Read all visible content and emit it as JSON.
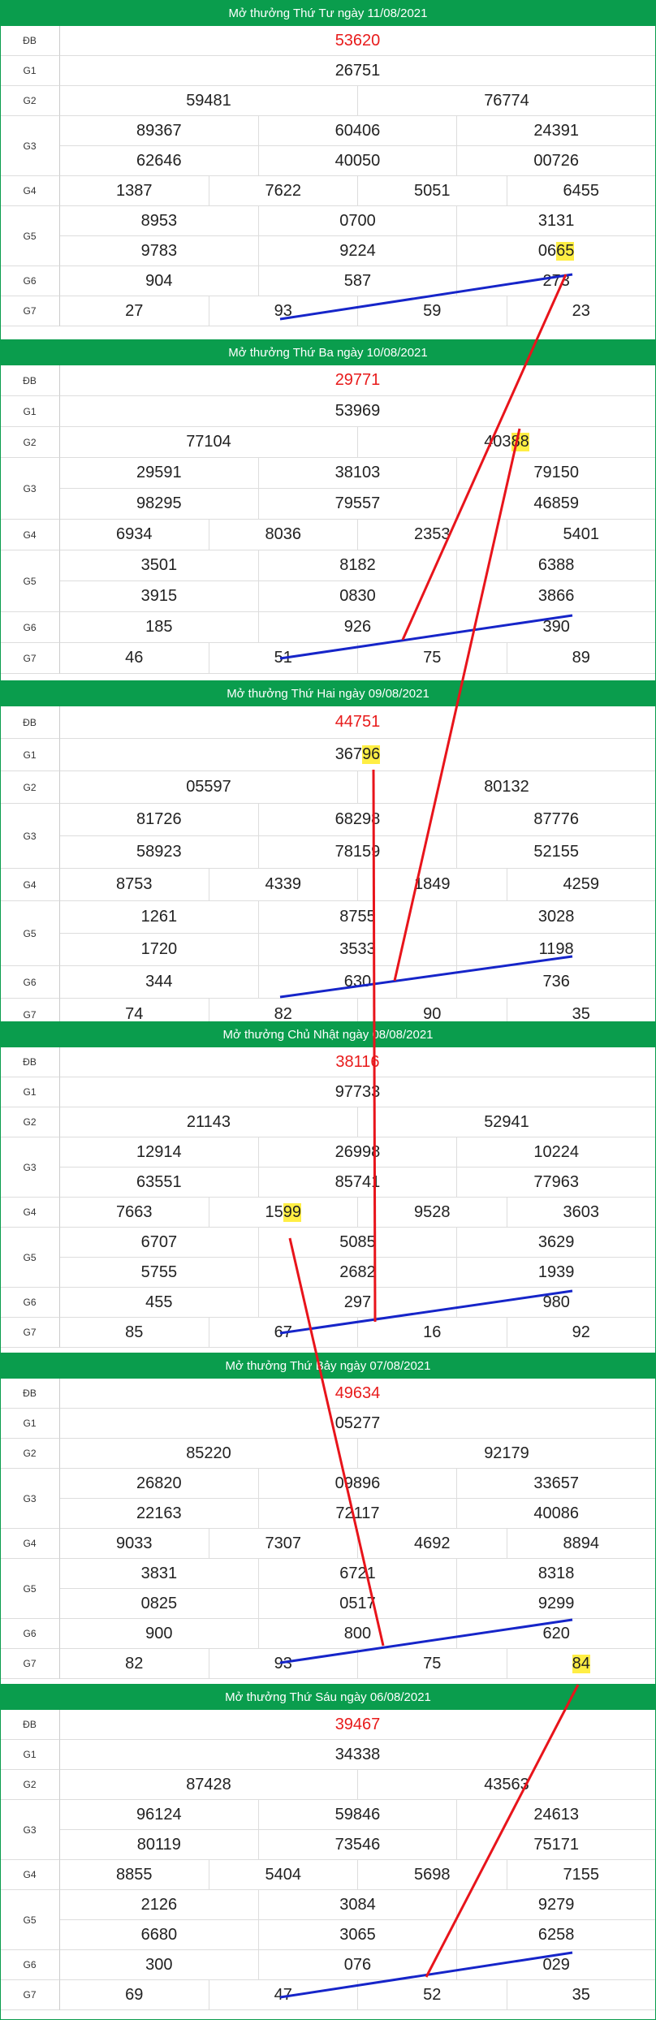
{
  "draws": [
    {
      "title": "Mở thưởng Thứ Tư ngày 11/08/2021",
      "labels": {
        "db": "ĐB",
        "g1": "G1",
        "g2": "G2",
        "g3": "G3",
        "g4": "G4",
        "g5": "G5",
        "g6": "G6",
        "g7": "G7"
      },
      "db": "53620",
      "g1": "26751",
      "g2": [
        "59481",
        "76774"
      ],
      "g3": [
        "89367",
        "60406",
        "24391",
        "62646",
        "40050",
        "00726"
      ],
      "g4": [
        "1387",
        "7622",
        "5051",
        "6455"
      ],
      "g5": [
        "8953",
        "0700",
        "3131",
        "9783",
        "9224",
        "0665"
      ],
      "g6": [
        "904",
        "587",
        "273"
      ],
      "g7": [
        "27",
        "93",
        "59",
        "23"
      ]
    },
    {
      "title": "Mở thưởng Thứ Ba ngày 10/08/2021",
      "labels": {
        "db": "ĐB",
        "g1": "G1",
        "g2": "G2",
        "g3": "G3",
        "g4": "G4",
        "g5": "G5",
        "g6": "G6",
        "g7": "G7"
      },
      "db": "29771",
      "g1": "53969",
      "g2": [
        "77104",
        "40388"
      ],
      "g3": [
        "29591",
        "38103",
        "79150",
        "98295",
        "79557",
        "46859"
      ],
      "g4": [
        "6934",
        "8036",
        "2353",
        "5401"
      ],
      "g5": [
        "3501",
        "8182",
        "6388",
        "3915",
        "0830",
        "3866"
      ],
      "g6": [
        "185",
        "926",
        "390"
      ],
      "g7": [
        "46",
        "51",
        "75",
        "89"
      ]
    },
    {
      "title": "Mở thưởng Thứ Hai ngày 09/08/2021",
      "labels": {
        "db": "ĐB",
        "g1": "G1",
        "g2": "G2",
        "g3": "G3",
        "g4": "G4",
        "g5": "G5",
        "g6": "G6",
        "g7": "G7"
      },
      "db": "44751",
      "g1": "36796",
      "g2": [
        "05597",
        "80132"
      ],
      "g3": [
        "81726",
        "68298",
        "87776",
        "58923",
        "78159",
        "52155"
      ],
      "g4": [
        "8753",
        "4339",
        "1849",
        "4259"
      ],
      "g5": [
        "1261",
        "8755",
        "3028",
        "1720",
        "3533",
        "1198"
      ],
      "g6": [
        "344",
        "630",
        "736"
      ],
      "g7": [
        "74",
        "82",
        "90",
        "35"
      ]
    },
    {
      "title": "Mở thưởng Chủ Nhật ngày 08/08/2021",
      "labels": {
        "db": "ĐB",
        "g1": "G1",
        "g2": "G2",
        "g3": "G3",
        "g4": "G4",
        "g5": "G5",
        "g6": "G6",
        "g7": "G7"
      },
      "db": "38116",
      "g1": "97733",
      "g2": [
        "21143",
        "52941"
      ],
      "g3": [
        "12914",
        "26998",
        "10224",
        "63551",
        "85741",
        "77963"
      ],
      "g4": [
        "7663",
        "1599",
        "9528",
        "3603"
      ],
      "g5": [
        "6707",
        "5085",
        "3629",
        "5755",
        "2682",
        "1939"
      ],
      "g6": [
        "455",
        "297",
        "980"
      ],
      "g7": [
        "85",
        "67",
        "16",
        "92"
      ]
    },
    {
      "title": "Mở thưởng Thứ Bảy ngày 07/08/2021",
      "labels": {
        "db": "ĐB",
        "g1": "G1",
        "g2": "G2",
        "g3": "G3",
        "g4": "G4",
        "g5": "G5",
        "g6": "G6",
        "g7": "G7"
      },
      "db": "49634",
      "g1": "05277",
      "g2": [
        "85220",
        "92179"
      ],
      "g3": [
        "26820",
        "09896",
        "33657",
        "22163",
        "72117",
        "40086"
      ],
      "g4": [
        "9033",
        "7307",
        "4692",
        "8894"
      ],
      "g5": [
        "3831",
        "6721",
        "8318",
        "0825",
        "0517",
        "9299"
      ],
      "g6": [
        "900",
        "800",
        "620"
      ],
      "g7": [
        "82",
        "93",
        "75",
        "84"
      ]
    },
    {
      "title": "Mở thưởng Thứ Sáu ngày 06/08/2021",
      "labels": {
        "db": "ĐB",
        "g1": "G1",
        "g2": "G2",
        "g3": "G3",
        "g4": "G4",
        "g5": "G5",
        "g6": "G6",
        "g7": "G7"
      },
      "db": "39467",
      "g1": "34338",
      "g2": [
        "87428",
        "43563"
      ],
      "g3": [
        "96124",
        "59846",
        "24613",
        "80119",
        "73546",
        "75171"
      ],
      "g4": [
        "8855",
        "5404",
        "5698",
        "7155"
      ],
      "g5": [
        "2126",
        "3084",
        "9279",
        "6680",
        "3065",
        "6258"
      ],
      "g6": [
        "300",
        "076",
        "029"
      ],
      "g7": [
        "69",
        "47",
        "52",
        "35"
      ]
    }
  ],
  "highlights": [
    {
      "draw": 0,
      "prize": "g5",
      "index": 5,
      "digits": "65"
    },
    {
      "draw": 1,
      "prize": "g2",
      "index": 1,
      "digits": "88"
    },
    {
      "draw": 2,
      "prize": "g1",
      "index": 0,
      "digits": "96"
    },
    {
      "draw": 3,
      "prize": "g4",
      "index": 1,
      "digits": "99"
    },
    {
      "draw": 4,
      "prize": "g7",
      "index": 3,
      "digits": "84"
    }
  ],
  "colors": {
    "header": "#0a9d4d",
    "special": "#e81b1b",
    "highlight": "#ffee44",
    "line_red": "#e8141b",
    "line_blue": "#1625c9"
  }
}
